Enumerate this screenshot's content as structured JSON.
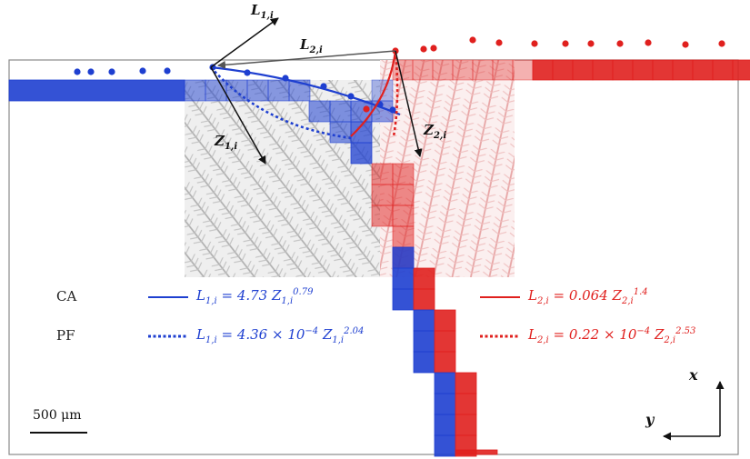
{
  "vectors": {
    "L1": {
      "base": "L",
      "sub": "1,i"
    },
    "L2": {
      "base": "L",
      "sub": "2,i"
    },
    "Z1": {
      "base": "Z",
      "sub": "1,i"
    },
    "Z2": {
      "base": "Z",
      "sub": "2,i"
    }
  },
  "legend": {
    "ca_label": "CA",
    "pf_label": "PF",
    "ca_blue": {
      "lhs": "L",
      "lhs_sub": "1,i",
      "mid": " = 4.73 Z",
      "mid_sub": "1,i",
      "exp": "0.79"
    },
    "pf_blue": {
      "lhs": "L",
      "lhs_sub": "1,i",
      "mid": " = 4.36 × 10",
      "neg_exp": "−4",
      "z": " Z",
      "z_sub": "1,i",
      "exp": "2.04"
    },
    "ca_red": {
      "lhs": "L",
      "lhs_sub": "2,i",
      "mid": " = 0.064 Z",
      "mid_sub": "2,i",
      "exp": "1.4"
    },
    "pf_red": {
      "lhs": "L",
      "lhs_sub": "2,i",
      "mid": " = 0.22 × 10",
      "neg_exp": "−4",
      "z": " Z",
      "z_sub": "2,i",
      "exp": "2.53"
    }
  },
  "scale_bar": {
    "label": "500 μm"
  },
  "axes": {
    "x_label": "x",
    "y_label": "y"
  },
  "colors": {
    "blue": "#1e3fd0",
    "red": "#e0201e",
    "arrow": "#111111",
    "dendrite_gray": "#b4b4b4",
    "dendrite_pink": "#eca6a6"
  }
}
